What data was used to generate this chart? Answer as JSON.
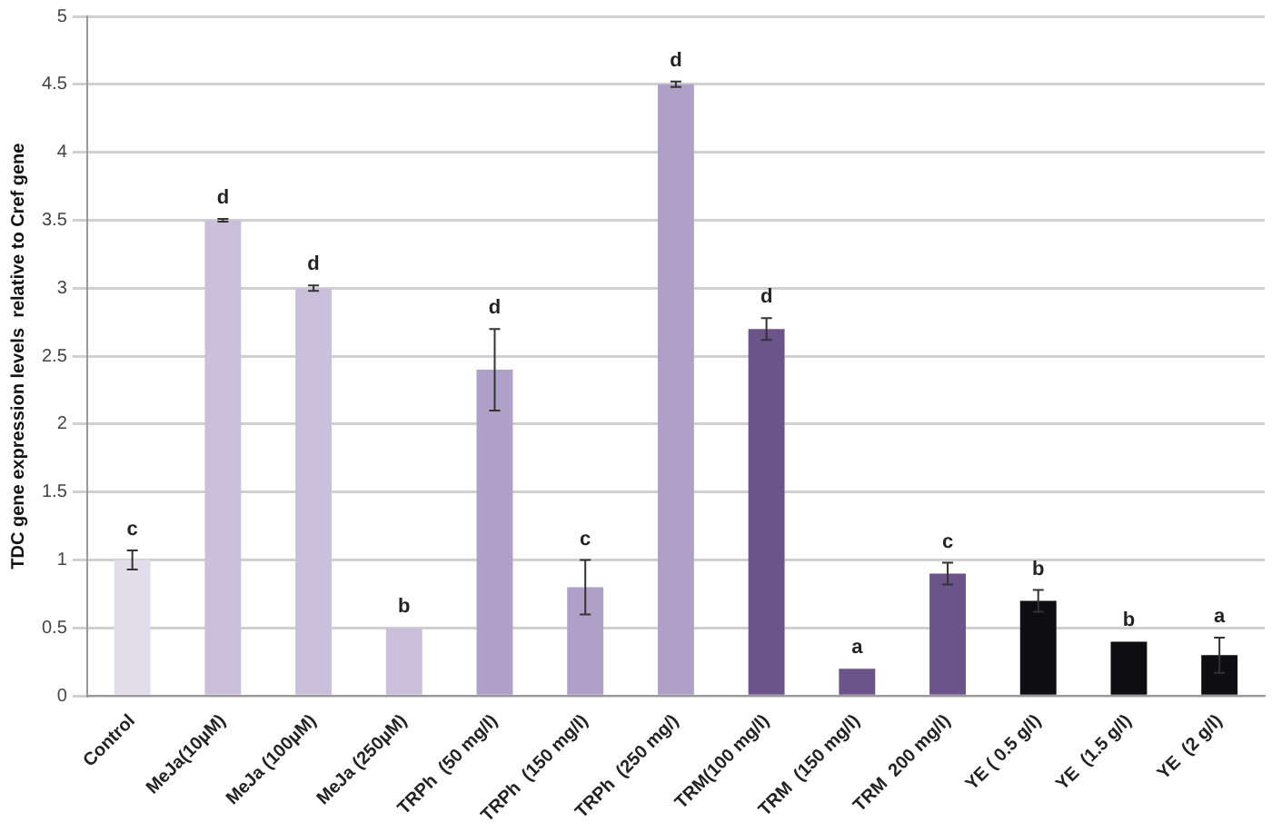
{
  "chart_data": {
    "type": "bar",
    "ylabel": "TDC gene expression levels  relative to Cref gene",
    "categories": [
      "Control",
      "MeJa(10µM)",
      "MeJa (100µM)",
      "MeJa (250µM)",
      "TRPh  (50 mg/l)",
      "TRPh  (150 mg/l)",
      "TRPh  (250 mg/)",
      "TRM(100 mg/l)",
      "TRM  (150 mg/l)",
      "TRM  200 mg/l)",
      "YE ( 0.5 g/l)",
      "YE  (1.5 g/l)",
      "YE  (2 g/l)"
    ],
    "values": [
      1.0,
      3.5,
      3.0,
      0.5,
      2.4,
      0.8,
      4.5,
      2.7,
      0.2,
      0.9,
      0.7,
      0.4,
      0.3
    ],
    "errors": [
      0.07,
      0.01,
      0.02,
      null,
      0.3,
      0.2,
      0.02,
      0.08,
      null,
      0.08,
      0.08,
      null,
      0.13
    ],
    "colors": [
      "#e3dcea",
      "#cbc0dc",
      "#cbc0dc",
      "#cbc0dc",
      "#b0a0c8",
      "#b0a0c8",
      "#b0a0c8",
      "#6b5489",
      "#6b5489",
      "#6b5489",
      "#0d0d12",
      "#0d0d12",
      "#0d0d12"
    ],
    "annotations": [
      {
        "text": "c",
        "x": "Control",
        "y": 1.07
      },
      {
        "text": "d",
        "x": "MeJa(10µM)",
        "y": 3.51
      },
      {
        "text": "d",
        "x": "MeJa (100µM)",
        "y": 3.02
      },
      {
        "text": "b",
        "x": "MeJa (250µM)",
        "y": 0.5
      },
      {
        "text": "d",
        "x": "TRPh  (50 mg/l)",
        "y": 2.7
      },
      {
        "text": "c",
        "x": "TRPh  (150 mg/l)",
        "y": 1.0
      },
      {
        "text": "d",
        "x": "TRPh  (250 mg/)",
        "y": 4.52
      },
      {
        "text": "d",
        "x": "TRM(100 mg/l)",
        "y": 2.78
      },
      {
        "text": "a",
        "x": "TRM  (150 mg/l)",
        "y": 0.2
      },
      {
        "text": "c",
        "x": "TRM  200 mg/l)",
        "y": 0.98
      },
      {
        "text": "b",
        "x": "YE ( 0.5 g/l)",
        "y": 0.78
      },
      {
        "text": "b",
        "x": "YE  (1.5 g/l)",
        "y": 0.4
      },
      {
        "text": "a",
        "x": "YE  (2 g/l)",
        "y": 0.43
      }
    ],
    "ylim": [
      0,
      5
    ],
    "yticks": [
      0,
      0.5,
      1,
      1.5,
      2,
      2.5,
      3,
      3.5,
      4,
      4.5,
      5
    ],
    "grid": "y",
    "legend": false
  }
}
